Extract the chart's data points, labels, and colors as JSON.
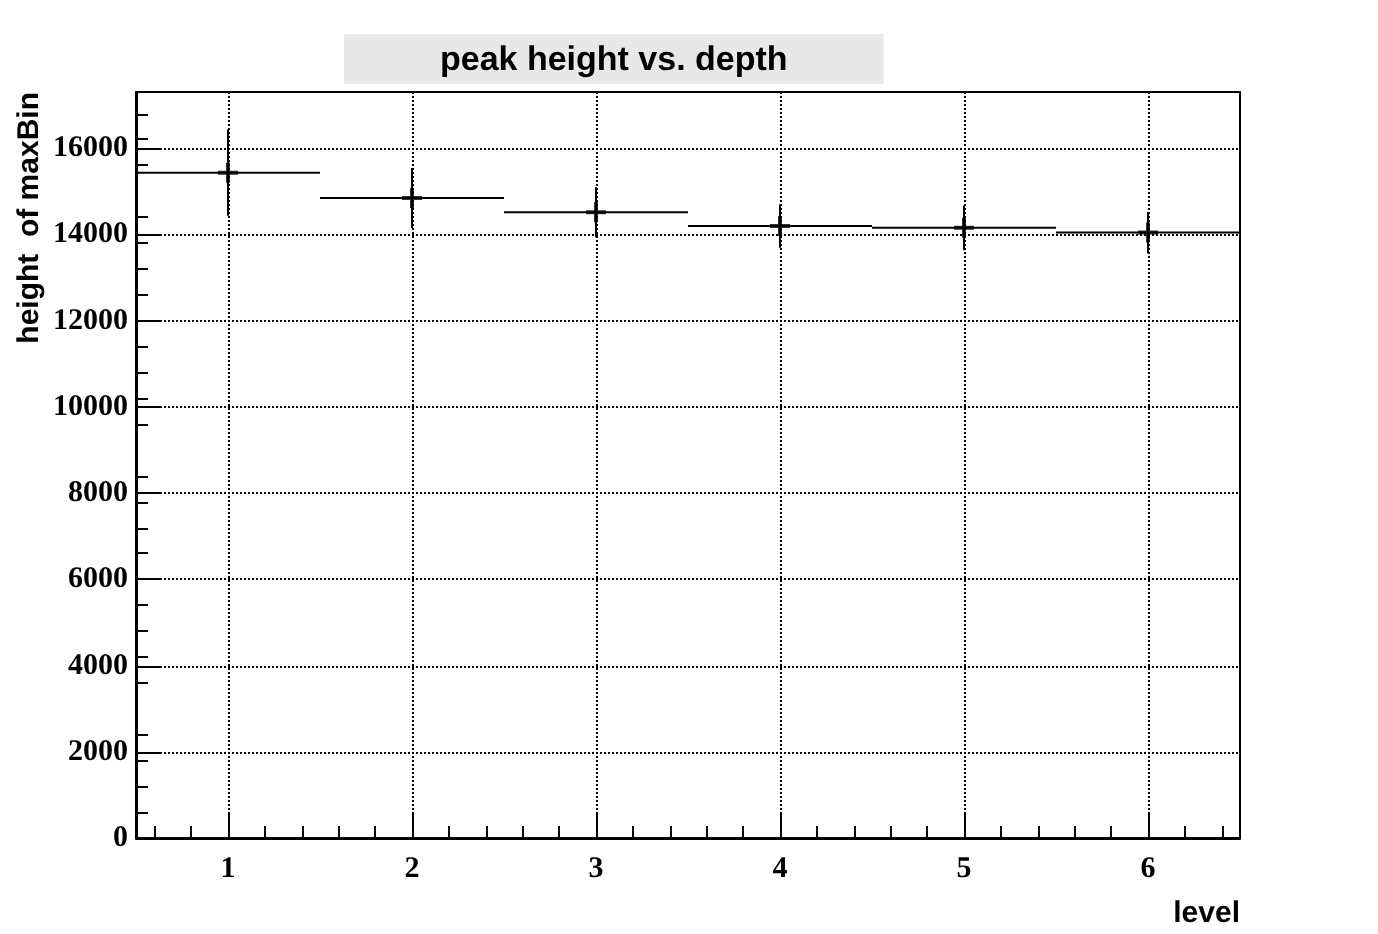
{
  "chart_data": {
    "type": "scatter",
    "title": "peak height vs. depth",
    "xlabel": "level",
    "ylabel": "height  of maxBin",
    "x": [
      1,
      2,
      3,
      4,
      5,
      6
    ],
    "values": [
      15430,
      14840,
      14510,
      14190,
      14150,
      14040
    ],
    "errors": [
      1000,
      700,
      580,
      500,
      520,
      480
    ],
    "xerrors": [
      0.5,
      0.5,
      0.5,
      0.5,
      0.5,
      0.5
    ],
    "color": "#000000",
    "marker": "cross",
    "grid": true,
    "xlim": [
      0.5,
      6.5
    ],
    "xticks": [
      1,
      2,
      3,
      4,
      5,
      6
    ],
    "ylim": [
      0,
      17300
    ],
    "yticks": [
      0,
      2000,
      4000,
      6000,
      8000,
      10000,
      12000,
      14000,
      16000
    ]
  }
}
